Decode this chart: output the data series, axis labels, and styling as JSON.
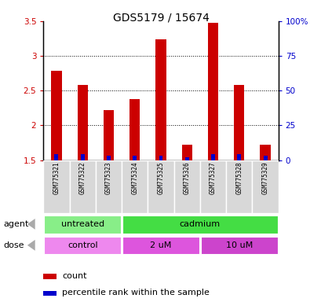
{
  "title": "GDS5179 / 15674",
  "samples": [
    "GSM775321",
    "GSM775322",
    "GSM775323",
    "GSM775324",
    "GSM775325",
    "GSM775326",
    "GSM775327",
    "GSM775328",
    "GSM775329"
  ],
  "count_values": [
    2.78,
    2.58,
    2.22,
    2.38,
    3.24,
    1.72,
    3.48,
    2.58,
    1.72
  ],
  "percentile_values": [
    4,
    4,
    3,
    3,
    3,
    2,
    4,
    4,
    3
  ],
  "bar_bottom": 1.5,
  "ylim_left": [
    1.5,
    3.5
  ],
  "ylim_right": [
    0,
    100
  ],
  "bar_color_red": "#cc0000",
  "bar_color_blue": "#0000cc",
  "agent_groups": [
    {
      "label": "untreated",
      "start": 0,
      "end": 3,
      "color": "#88ee88"
    },
    {
      "label": "cadmium",
      "start": 3,
      "end": 9,
      "color": "#44dd44"
    }
  ],
  "dose_groups": [
    {
      "label": "control",
      "start": 0,
      "end": 3,
      "color": "#ee88ee"
    },
    {
      "label": "2 uM",
      "start": 3,
      "end": 6,
      "color": "#dd55dd"
    },
    {
      "label": "10 uM",
      "start": 6,
      "end": 9,
      "color": "#cc44cc"
    }
  ],
  "legend_count_label": "count",
  "legend_pct_label": "percentile rank within the sample",
  "tick_color_left": "#cc0000",
  "tick_color_right": "#0000cc",
  "grid_yticks": [
    2.0,
    2.5,
    3.0
  ],
  "left_yticks": [
    1.5,
    2.0,
    2.5,
    3.0,
    3.5
  ],
  "left_yticklabels": [
    "1.5",
    "2",
    "2.5",
    "3",
    "3.5"
  ],
  "right_yticks": [
    0,
    25,
    50,
    75,
    100
  ],
  "right_yticklabels": [
    "0",
    "25",
    "50",
    "75",
    "100%"
  ]
}
